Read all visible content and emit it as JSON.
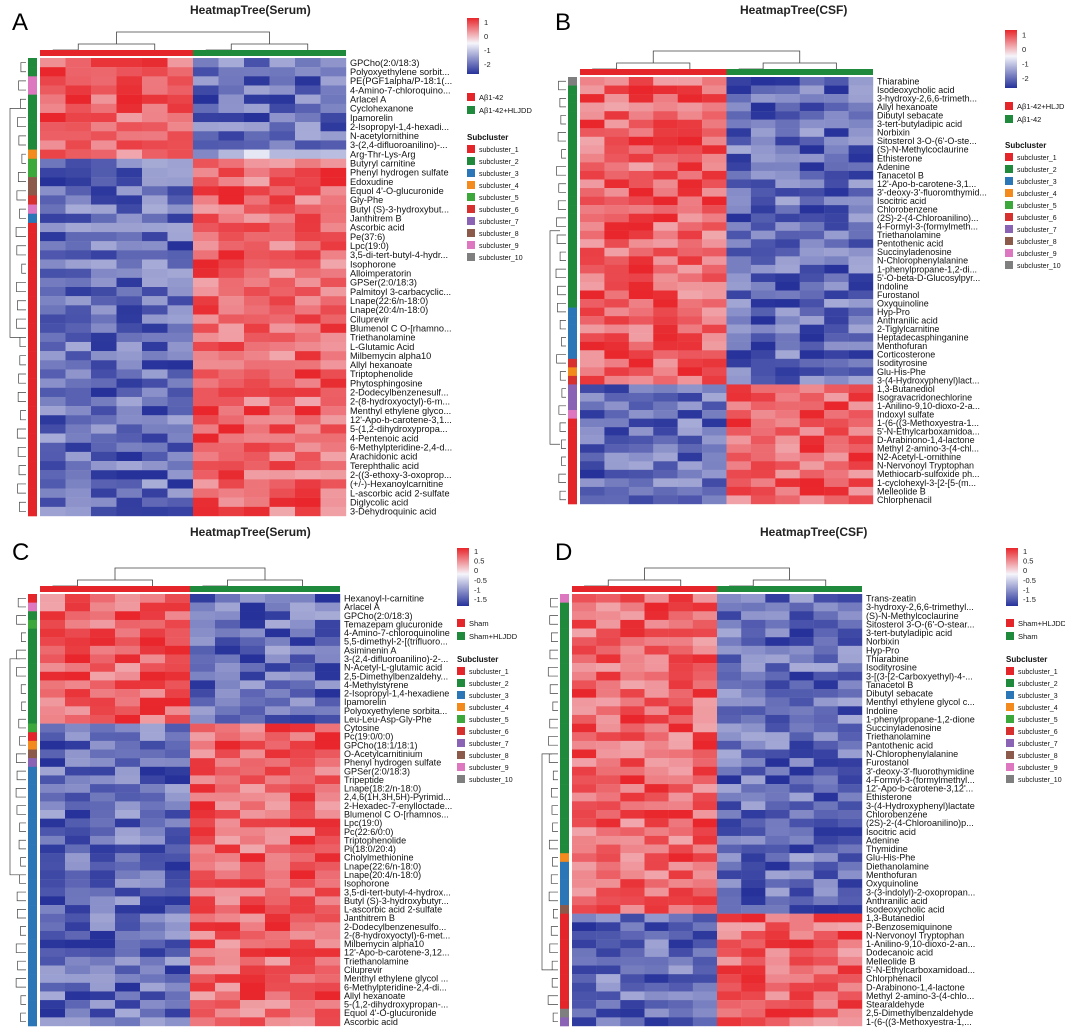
{
  "colors": {
    "high": "#e8262b",
    "mid": "#f5f5fb",
    "low": "#26329a",
    "group_red": "#e4262a",
    "group_green": "#1f8a3b"
  },
  "subcluster_palette": [
    "#e4262a",
    "#1f8a3b",
    "#2b76b7",
    "#f28a1e",
    "#3ca83c",
    "#d6312f",
    "#8a63b5",
    "#8c5a4a",
    "#dd77c0",
    "#7f7f7f"
  ],
  "chart_data": [
    {
      "type": "heatmap",
      "panel_label": "A",
      "title": "HeatmapTree(Serum)",
      "colorbar_ticks": [
        "1",
        "0",
        "-1",
        "-2"
      ],
      "legend_groups": [
        {
          "label": "Aβ1-42",
          "color": "#e4262a"
        },
        {
          "label": "Aβ1-42+HLJDD",
          "color": "#1f8a3b"
        }
      ],
      "subcluster_title": "Subcluster",
      "subcluster_labels": [
        "subcluster_1",
        "subcluster_2",
        "subcluster_3",
        "subcluster_4",
        "subcluster_5",
        "subcluster_6",
        "subcluster_7",
        "subcluster_8",
        "subcluster_9",
        "subcluster_10"
      ],
      "column_groups": [
        6,
        6
      ],
      "row_labels": [
        "GPCho(2:0/18:3)",
        "Polyoxyethylene sorbit...",
        "PE(PGF1alpha/P-18:1(...",
        "4-Amino-7-chloroquino...",
        "Arlacel A",
        "Cyclohexanone",
        "Ipamorelin",
        "2-Isopropyl-1,4-hexadi...",
        "N-acetylornithine",
        "3-(2,4-difluoroanilino)-...",
        "Arg-Thr-Lys-Arg",
        "Butyryl carnitine",
        "Phenyl hydrogen sulfate",
        "Edoxudine",
        "Equol 4'-O-glucuronide",
        "Gly-Phe",
        "Butyl (S)-3-hydroxybut...",
        "Janthitrem B",
        "Ascorbic acid",
        "Pe(37:6)",
        "Lpc(19:0)",
        "3,5-di-tert-butyl-4-hydr...",
        "Isophorone",
        "Alloimperatorin",
        "GPSer(2:0/18:3)",
        "Palmitoyl 3-carbacyclic...",
        "Lnape(22:6/n-18:0)",
        "Lnape(20:4/n-18:0)",
        "Ciluprevir",
        "Blumenol C O-[rhamno...",
        "Triethanolamine",
        "L-Glutamic Acid",
        "Milbemycin alpha10",
        "Allyl hexanoate",
        "Triptophenolide",
        "Phytosphingosine",
        "2-Dodecylbenzenesulf...",
        "2-(8-hydroxyoctyl)-6-m...",
        "Menthyl ethylene glyco...",
        "12'-Apo-b-carotene-3,1...",
        "5-(1,2-dihydroxypropa...",
        "4-Pentenoic acid",
        "6-Methylpteridine-2,4-d...",
        "Arachidonic acid",
        "Terephthalic acid",
        "2-((3-ethoxy-3-oxoprop...",
        "(+/-)-Hexanoylcarnitine",
        "L-ascorbic acid 2-sulfate",
        "Diglycolic acid",
        "3-Dehydroquinic acid"
      ],
      "row_subclusters": [
        2,
        2,
        9,
        9,
        2,
        2,
        2,
        2,
        2,
        2,
        4,
        5,
        5,
        8,
        8,
        6,
        9,
        3,
        1,
        1,
        1,
        1,
        1,
        1,
        1,
        1,
        1,
        1,
        1,
        1,
        1,
        1,
        1,
        1,
        1,
        1,
        1,
        1,
        1,
        1,
        1,
        1,
        1,
        1,
        1,
        1,
        1,
        1,
        1,
        1
      ],
      "row_pattern": [
        -1,
        -1,
        -1,
        -1,
        -1,
        -1,
        -1,
        -1,
        -1,
        -1,
        0,
        1,
        1,
        1,
        1,
        1,
        1,
        1,
        1,
        1,
        1,
        1,
        1,
        1,
        1,
        1,
        1,
        1,
        1,
        1,
        1,
        1,
        1,
        1,
        1,
        1,
        1,
        1,
        1,
        1,
        1,
        1,
        1,
        1,
        1,
        1,
        1,
        1,
        1,
        1
      ]
    },
    {
      "type": "heatmap",
      "panel_label": "B",
      "title": "HeatmapTree(CSF)",
      "colorbar_ticks": [
        "1",
        "0",
        "-1",
        "-2"
      ],
      "legend_groups": [
        {
          "label": "Aβ1-42+HLJDD",
          "color": "#e4262a"
        },
        {
          "label": "Aβ1-42",
          "color": "#1f8a3b"
        }
      ],
      "subcluster_title": "Subcluster",
      "subcluster_labels": [
        "subcluster_1",
        "subcluster_2",
        "subcluster_3",
        "subcluster_4",
        "subcluster_5",
        "subcluster_6",
        "subcluster_7",
        "subcluster_8",
        "subcluster_9",
        "subcluster_10"
      ],
      "column_groups": [
        6,
        6
      ],
      "row_labels": [
        "Thiarabine",
        "Isodeoxycholic acid",
        "3-hydroxy-2,6,6-trimeth...",
        "Allyl hexanoate",
        "Dibutyl sebacate",
        "3-tert-butyladipic acid",
        "Norbixin",
        "Sitosterol 3-O-(6'-O-ste...",
        "(S)-N-Methylcoclaurine",
        "Ethisterone",
        "Adenine",
        "Tanacetol B",
        "12'-Apo-b-carotene-3,1...",
        "3'-deoxy-3'-fluoromthymid...",
        "Isocitric acid",
        "Chlorobenzene",
        "(2S)-2-(4-Chloroanilino)...",
        "4-Formyl-3-(formylmeth...",
        "Triethanolamine",
        "Pentothenic acid",
        "Succinyladenosine",
        "N-Chlorophenylalanine",
        "1-phenylpropane-1,2-di...",
        "5'-O-beta-D-Glucosylpyr...",
        "Indoline",
        "Furostanol",
        "Oxyquinoline",
        "Hyp-Pro",
        "Anthranilic acid",
        "2-Tiglylcarnitine",
        "Heptadecasphinganine",
        "Menthofuran",
        "Corticosterone",
        "Isodityrosine",
        "Glu-His-Phe",
        "3-(4-Hydroxyphenyl)lact...",
        "1,3-Butanediol",
        "Isogravacridonechlorine",
        "1-Anilino-9,10-dioxo-2-a...",
        "Indoxyl sulfate",
        "1-(6-((3-Methoxyestra-1...",
        "5'-N-Ethylcarboxamidoa...",
        "D-Arabinono-1,4-lactone",
        "Methyl 2-amino-3-(4-chl...",
        "N2-Acetyl-L-ornithine",
        "N-Nervonoyl Tryptophan",
        "Methiocarb-sulfoxide ph...",
        "1-cyclohexyl-3-[2-[5-(m...",
        "Melleolide B",
        "Chlorphenacil"
      ],
      "row_subclusters": [
        10,
        2,
        2,
        2,
        2,
        2,
        2,
        2,
        2,
        2,
        2,
        2,
        2,
        2,
        2,
        2,
        2,
        2,
        2,
        2,
        2,
        2,
        2,
        2,
        2,
        2,
        2,
        3,
        3,
        3,
        3,
        3,
        3,
        6,
        4,
        6,
        7,
        7,
        7,
        9,
        1,
        1,
        1,
        1,
        1,
        1,
        1,
        1,
        1,
        1
      ],
      "row_pattern": [
        -1,
        -1,
        -1,
        -1,
        -1,
        -1,
        -1,
        -1,
        -1,
        -1,
        -1,
        -1,
        -1,
        -1,
        -1,
        -1,
        -1,
        -1,
        -1,
        -1,
        -1,
        -1,
        -1,
        -1,
        -1,
        -1,
        -1,
        -1,
        -1,
        -1,
        -1,
        -1,
        -1,
        -1,
        -1,
        -1,
        1,
        1,
        1,
        1,
        1,
        1,
        1,
        1,
        1,
        1,
        1,
        1,
        1,
        1
      ]
    },
    {
      "type": "heatmap",
      "panel_label": "C",
      "title": "HeatmapTree(Serum)",
      "colorbar_ticks": [
        "1",
        "0.5",
        "0",
        "-0.5",
        "-1",
        "-1.5"
      ],
      "legend_groups": [
        {
          "label": "Sham",
          "color": "#e4262a"
        },
        {
          "label": "Sham+HLJDD",
          "color": "#1f8a3b"
        }
      ],
      "subcluster_title": "Subcluster",
      "subcluster_labels": [
        "subcluster_1",
        "subcluster_2",
        "subcluster_3",
        "subcluster_4",
        "subcluster_5",
        "subcluster_6",
        "subcluster_7",
        "subcluster_8",
        "subcluster_9",
        "subcluster_10"
      ],
      "column_groups": [
        6,
        6
      ],
      "row_labels": [
        "Hexanoyl-l-carnitine",
        "Arlacel A",
        "GPCho(2:0/18:3)",
        "Temazepam glucuronide",
        "4-Amino-7-chloroquinoline",
        "5,5-dimethyl-2-[(trifluoro...",
        "Asiminenin A",
        "3-(2,4-difluoroanilino)-2-...",
        "N-Acetyl-L-glutamic acid",
        "2,5-Dimethylbenzaldehy...",
        "4-Methylstyrene",
        "2-Isopropyl-1,4-hexadiene",
        "Ipamorelin",
        "Polyoxyethylene sorbita...",
        "Leu-Leu-Asp-Gly-Phe",
        "Cytosine",
        "Pc(19:0/0:0)",
        "GPCho(18:1/18:1)",
        "O-Acetylcarnitinium",
        "Phenyl hydrogen sulfate",
        "GPSer(2:0/18:3)",
        "Tripeptide",
        "Lnape(18:2/n-18:0)",
        "2,4,6(1H,3H,5H)-Pyrimid...",
        "2-Hexadec-7-enylloctade...",
        "Blumenol C O-[rhamnos...",
        "Lpc(19:0)",
        "Pc(22:6/0:0)",
        "Triptophenolide",
        "Pi(18:0/20:4)",
        "Cholylmethionine",
        "Lnape(22:6/n-18:0)",
        "Lnape(20:4/n-18:0)",
        "Isophorone",
        "3,5-di-tert-butyl-4-hydrox...",
        "Butyl (S)-3-hydroxybutyr...",
        "L-ascorbic acid 2-sulfate",
        "Janthitrem B",
        "2-Dodecylbenzenesulfo...",
        "2-(8-hydroxyoctyl)-6-met...",
        "Milbemycin alpha10",
        "12'-Apo-b-carotene-3,12...",
        "Triethanolamine",
        "Ciluprevir",
        "Menthyl ethylene glycol ...",
        "6-Methylpteridine-2,4-di...",
        "Allyl hexanoate",
        "5-(1,2-dihydroxypropan-...",
        "Equol 4'-O-glucuronide",
        "Ascorbic acid"
      ],
      "row_subclusters": [
        1,
        9,
        2,
        5,
        2,
        2,
        2,
        2,
        2,
        2,
        2,
        2,
        2,
        2,
        2,
        5,
        1,
        4,
        8,
        7,
        3,
        3,
        3,
        3,
        3,
        3,
        3,
        3,
        3,
        3,
        3,
        3,
        3,
        3,
        3,
        3,
        3,
        3,
        3,
        3,
        3,
        3,
        3,
        3,
        3,
        3,
        3,
        3,
        3,
        3
      ],
      "row_pattern": [
        -1,
        -1,
        -1,
        -1,
        -1,
        -1,
        -1,
        -1,
        -1,
        -1,
        -1,
        -1,
        -1,
        -1,
        -1,
        1,
        1,
        1,
        1,
        1,
        1,
        1,
        1,
        1,
        1,
        1,
        1,
        1,
        1,
        1,
        1,
        1,
        1,
        1,
        1,
        1,
        1,
        1,
        1,
        1,
        1,
        1,
        1,
        1,
        1,
        1,
        1,
        1,
        1,
        1
      ]
    },
    {
      "type": "heatmap",
      "panel_label": "D",
      "title": "HeatmapTree(CSF)",
      "colorbar_ticks": [
        "1",
        "0.5",
        "0",
        "-0.5",
        "-1",
        "-1.5"
      ],
      "legend_groups": [
        {
          "label": "Sham+HLJDD",
          "color": "#e4262a"
        },
        {
          "label": "Sham",
          "color": "#1f8a3b"
        }
      ],
      "subcluster_title": "Subcluster",
      "subcluster_labels": [
        "subcluster_1",
        "subcluster_2",
        "subcluster_3",
        "subcluster_4",
        "subcluster_5",
        "subcluster_6",
        "subcluster_7",
        "subcluster_8",
        "subcluster_9",
        "subcluster_10"
      ],
      "column_groups": [
        6,
        6
      ],
      "row_labels": [
        "Trans-zeatin",
        "3-hydroxy-2,6,6-trimethyl...",
        "(S)-N-Methylcoclaurine",
        "Sitosterol 3-O-(6'-O-stear...",
        "3-tert-butyladipic acid",
        "Norbixin",
        "Hyp-Pro",
        "Thiarabine",
        "Isodityrosine",
        "3-[(3-[2-Carboxyethyl)-4-...",
        "Tanacetol B",
        "Dibutyl sebacate",
        "Menthyl ethylene glycol c...",
        "Indoline",
        "1-phenylpropane-1,2-dione",
        "Succinyladenosine",
        "Triethanolamine",
        "Pantothenic acid",
        "N-Chlorophenylalanine",
        "Furostanol",
        "3'-deoxy-3'-fluorothymidine",
        "4-Formyl-3-(formylmethyl...",
        "12'-Apo-b-carotene-3,12'...",
        "Ethisterone",
        "3-(4-Hydroxyphenyl)lactate",
        "Chlorobenzene",
        "(2S)-2-(4-Chloroanilino)p...",
        "Isocitric acid",
        "Adenine",
        "Thymidine",
        "Glu-His-Phe",
        "Diethanolamine",
        "Menthofuran",
        "Oxyquinoline",
        "3-(3-indolyl)-2-oxopropan...",
        "Anthranilic acid",
        "Isodeoxycholic acid",
        "1,3-Butanediol",
        "P-Benzosemiquinone",
        "N-Nervonoyl Tryptophan",
        "1-Anilino-9,10-dioxo-2-an...",
        "Dodecanoic acid",
        "Melleolide B",
        "5'-N-Ethylcarboxamidoad...",
        "Chlorphenacil",
        "D-Arabinono-1,4-lactone",
        "Methyl 2-amino-3-(4-chlo...",
        "Stearaldehyde",
        "2,5-Dimethylbenzaldehyde",
        "1-(6-((3-Methoxyestra-1,..."
      ],
      "row_subclusters": [
        9,
        2,
        2,
        2,
        2,
        2,
        2,
        2,
        2,
        2,
        2,
        2,
        2,
        2,
        2,
        2,
        2,
        2,
        2,
        2,
        2,
        2,
        2,
        2,
        2,
        2,
        2,
        2,
        2,
        2,
        4,
        3,
        3,
        3,
        3,
        3,
        8,
        1,
        1,
        1,
        1,
        1,
        1,
        1,
        1,
        1,
        1,
        1,
        10,
        7
      ],
      "row_pattern": [
        -1,
        -1,
        -1,
        -1,
        -1,
        -1,
        -1,
        -1,
        -1,
        -1,
        -1,
        -1,
        -1,
        -1,
        -1,
        -1,
        -1,
        -1,
        -1,
        -1,
        -1,
        -1,
        -1,
        -1,
        -1,
        -1,
        -1,
        -1,
        -1,
        -1,
        -1,
        -1,
        -1,
        -1,
        -1,
        -1,
        -1,
        1,
        1,
        1,
        1,
        1,
        1,
        1,
        1,
        1,
        1,
        1,
        1,
        1
      ]
    }
  ]
}
